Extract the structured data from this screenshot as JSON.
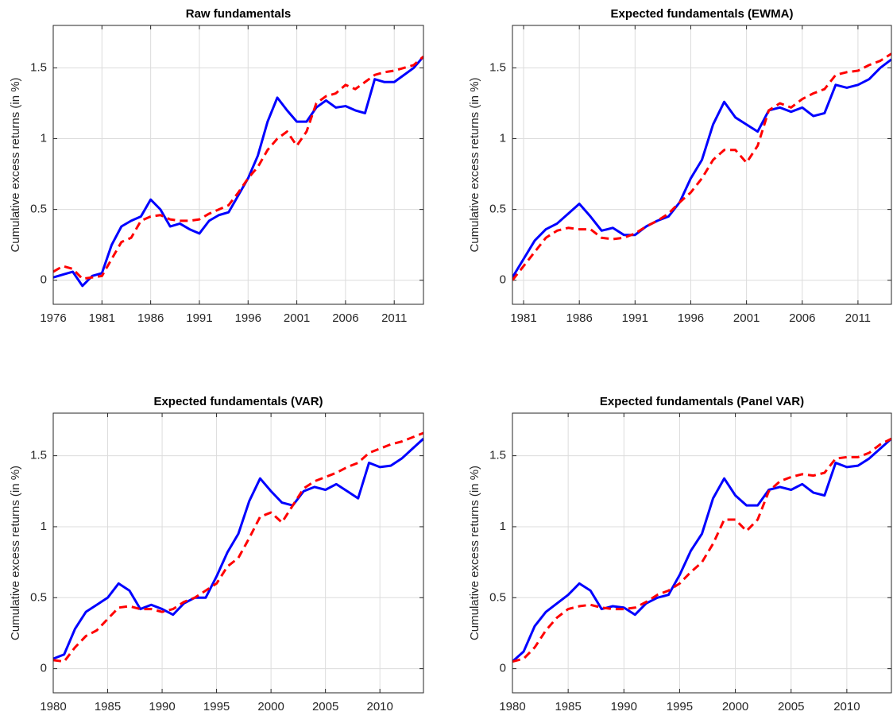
{
  "chart_data": [
    {
      "type": "line",
      "title": "Raw fundamentals",
      "ylabel": "Cumulative excess returns (in %)",
      "x": [
        1976,
        1977,
        1978,
        1979,
        1980,
        1981,
        1982,
        1983,
        1984,
        1985,
        1986,
        1987,
        1988,
        1989,
        1990,
        1991,
        1992,
        1993,
        1994,
        1995,
        1996,
        1997,
        1998,
        1999,
        2000,
        2001,
        2002,
        2003,
        2004,
        2005,
        2006,
        2007,
        2008,
        2009,
        2010,
        2011,
        2012,
        2013,
        2014
      ],
      "series": [
        {
          "color": "#0000ff",
          "line_style": "solid",
          "values": [
            0.02,
            0.04,
            0.06,
            -0.04,
            0.03,
            0.05,
            0.25,
            0.38,
            0.42,
            0.45,
            0.57,
            0.5,
            0.38,
            0.4,
            0.36,
            0.33,
            0.42,
            0.46,
            0.48,
            0.6,
            0.72,
            0.88,
            1.12,
            1.29,
            1.2,
            1.12,
            1.12,
            1.22,
            1.27,
            1.22,
            1.23,
            1.2,
            1.18,
            1.42,
            1.4,
            1.4,
            1.45,
            1.5,
            1.58
          ]
        },
        {
          "color": "#ff0000",
          "line_style": "dashed",
          "values": [
            0.06,
            0.1,
            0.08,
            0.01,
            0.02,
            0.03,
            0.15,
            0.27,
            0.3,
            0.42,
            0.45,
            0.46,
            0.43,
            0.42,
            0.42,
            0.43,
            0.47,
            0.5,
            0.53,
            0.62,
            0.72,
            0.8,
            0.92,
            1.0,
            1.05,
            0.95,
            1.05,
            1.25,
            1.3,
            1.32,
            1.38,
            1.35,
            1.4,
            1.45,
            1.47,
            1.48,
            1.5,
            1.52,
            1.58
          ]
        }
      ],
      "xlim": [
        1976,
        2014
      ],
      "xticks": [
        1976,
        1981,
        1986,
        1991,
        1996,
        2001,
        2006,
        2011
      ],
      "ylim": [
        -0.17,
        1.8
      ],
      "yticks": [
        0,
        0.5,
        1,
        1.5
      ],
      "grid": true
    },
    {
      "type": "line",
      "title": "Expected fundamentals (EWMA)",
      "ylabel": "Cumulative excess returns (in %)",
      "x": [
        1980,
        1981,
        1982,
        1983,
        1984,
        1985,
        1986,
        1987,
        1988,
        1989,
        1990,
        1991,
        1992,
        1993,
        1994,
        1995,
        1996,
        1997,
        1998,
        1999,
        2000,
        2001,
        2002,
        2003,
        2004,
        2005,
        2006,
        2007,
        2008,
        2009,
        2010,
        2011,
        2012,
        2013,
        2014
      ],
      "series": [
        {
          "color": "#0000ff",
          "line_style": "solid",
          "values": [
            0.02,
            0.15,
            0.28,
            0.36,
            0.4,
            0.47,
            0.54,
            0.45,
            0.35,
            0.37,
            0.32,
            0.32,
            0.38,
            0.42,
            0.45,
            0.55,
            0.72,
            0.85,
            1.1,
            1.26,
            1.15,
            1.1,
            1.05,
            1.2,
            1.22,
            1.19,
            1.22,
            1.16,
            1.18,
            1.38,
            1.36,
            1.38,
            1.42,
            1.5,
            1.56
          ]
        },
        {
          "color": "#ff0000",
          "line_style": "dashed",
          "values": [
            0.0,
            0.1,
            0.2,
            0.3,
            0.35,
            0.37,
            0.36,
            0.36,
            0.3,
            0.29,
            0.3,
            0.33,
            0.38,
            0.42,
            0.47,
            0.55,
            0.62,
            0.72,
            0.85,
            0.92,
            0.92,
            0.83,
            0.95,
            1.2,
            1.25,
            1.22,
            1.28,
            1.32,
            1.35,
            1.45,
            1.47,
            1.48,
            1.52,
            1.55,
            1.6
          ]
        }
      ],
      "xlim": [
        1980,
        2014
      ],
      "xticks": [
        1981,
        1986,
        1991,
        1996,
        2001,
        2006,
        2011
      ],
      "ylim": [
        -0.17,
        1.8
      ],
      "yticks": [
        0,
        0.5,
        1,
        1.5
      ],
      "grid": true
    },
    {
      "type": "line",
      "title": "Expected fundamentals (VAR)",
      "ylabel": "Cumulative excess returns (in %)",
      "x": [
        1980,
        1981,
        1982,
        1983,
        1984,
        1985,
        1986,
        1987,
        1988,
        1989,
        1990,
        1991,
        1992,
        1993,
        1994,
        1995,
        1996,
        1997,
        1998,
        1999,
        2000,
        2001,
        2002,
        2003,
        2004,
        2005,
        2006,
        2007,
        2008,
        2009,
        2010,
        2011,
        2012,
        2013,
        2014
      ],
      "series": [
        {
          "color": "#0000ff",
          "line_style": "solid",
          "values": [
            0.07,
            0.1,
            0.28,
            0.4,
            0.45,
            0.5,
            0.6,
            0.55,
            0.42,
            0.45,
            0.42,
            0.38,
            0.46,
            0.5,
            0.5,
            0.65,
            0.82,
            0.95,
            1.18,
            1.34,
            1.25,
            1.17,
            1.15,
            1.25,
            1.28,
            1.26,
            1.3,
            1.25,
            1.2,
            1.45,
            1.42,
            1.43,
            1.48,
            1.55,
            1.62
          ]
        },
        {
          "color": "#ff0000",
          "line_style": "dashed",
          "values": [
            0.06,
            0.05,
            0.15,
            0.23,
            0.27,
            0.35,
            0.43,
            0.44,
            0.42,
            0.42,
            0.4,
            0.42,
            0.47,
            0.5,
            0.55,
            0.6,
            0.72,
            0.78,
            0.92,
            1.07,
            1.1,
            1.03,
            1.15,
            1.27,
            1.32,
            1.35,
            1.38,
            1.42,
            1.45,
            1.52,
            1.55,
            1.58,
            1.6,
            1.63,
            1.66
          ]
        }
      ],
      "xlim": [
        1980,
        2014
      ],
      "xticks": [
        1980,
        1985,
        1990,
        1995,
        2000,
        2005,
        2010
      ],
      "ylim": [
        -0.17,
        1.8
      ],
      "yticks": [
        0,
        0.5,
        1,
        1.5
      ],
      "grid": true
    },
    {
      "type": "line",
      "title": "Expected fundamentals (Panel VAR)",
      "ylabel": "Cumulative excess returns (in %)",
      "x": [
        1980,
        1981,
        1982,
        1983,
        1984,
        1985,
        1986,
        1987,
        1988,
        1989,
        1990,
        1991,
        1992,
        1993,
        1994,
        1995,
        1996,
        1997,
        1998,
        1999,
        2000,
        2001,
        2002,
        2003,
        2004,
        2005,
        2006,
        2007,
        2008,
        2009,
        2010,
        2011,
        2012,
        2013,
        2014
      ],
      "series": [
        {
          "color": "#0000ff",
          "line_style": "solid",
          "values": [
            0.05,
            0.12,
            0.3,
            0.4,
            0.46,
            0.52,
            0.6,
            0.55,
            0.42,
            0.44,
            0.43,
            0.38,
            0.46,
            0.5,
            0.52,
            0.66,
            0.83,
            0.95,
            1.2,
            1.34,
            1.22,
            1.15,
            1.15,
            1.26,
            1.28,
            1.26,
            1.3,
            1.24,
            1.22,
            1.45,
            1.42,
            1.43,
            1.48,
            1.55,
            1.62
          ]
        },
        {
          "color": "#ff0000",
          "line_style": "dashed",
          "values": [
            0.05,
            0.07,
            0.15,
            0.27,
            0.36,
            0.42,
            0.44,
            0.45,
            0.43,
            0.42,
            0.42,
            0.43,
            0.47,
            0.52,
            0.55,
            0.6,
            0.68,
            0.75,
            0.88,
            1.05,
            1.05,
            0.97,
            1.05,
            1.25,
            1.32,
            1.35,
            1.37,
            1.36,
            1.38,
            1.48,
            1.49,
            1.49,
            1.52,
            1.58,
            1.62
          ]
        }
      ],
      "xlim": [
        1980,
        2014
      ],
      "xticks": [
        1980,
        1985,
        1990,
        1995,
        2000,
        2005,
        2010
      ],
      "ylim": [
        -0.17,
        1.8
      ],
      "yticks": [
        0,
        0.5,
        1,
        1.5
      ],
      "grid": true
    }
  ]
}
